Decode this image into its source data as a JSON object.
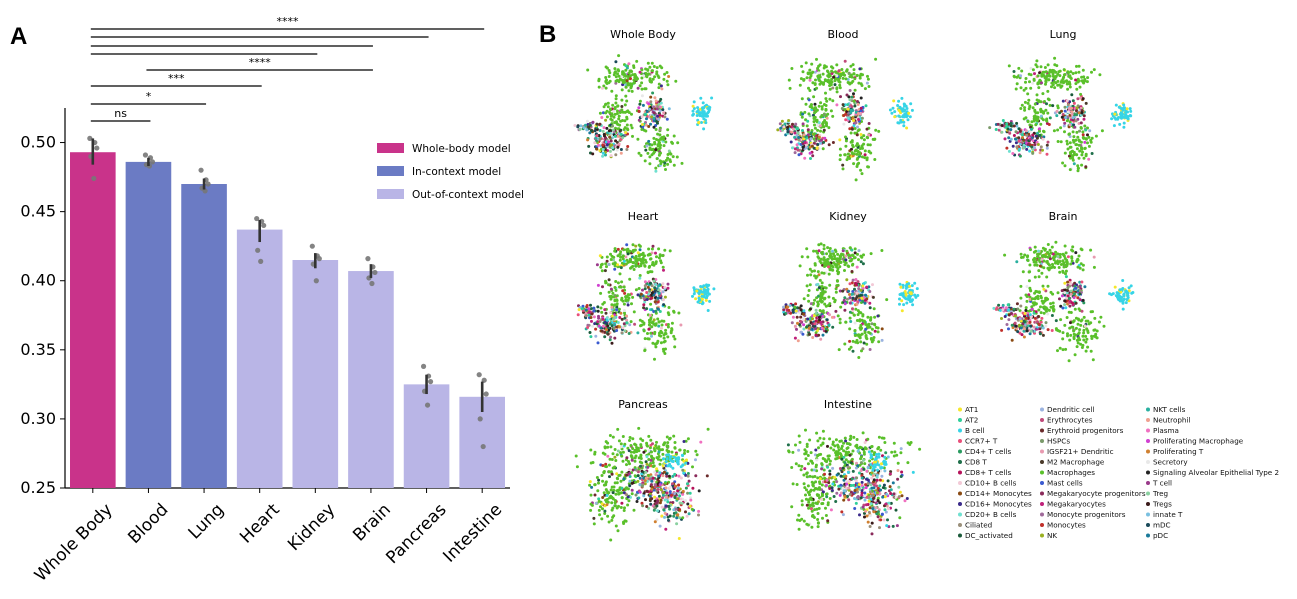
{
  "panel_a": {
    "letter": "A",
    "legend": [
      "Whole-body model",
      "In-context model",
      "Out-of-context model"
    ],
    "colors": {
      "whole_body": "#c9338a",
      "in_context": "#6b7bc4",
      "out_of_context": "#b9b5e6",
      "error_bar": "#333333",
      "dot": "#777777"
    }
  },
  "panel_b": {
    "letter": "B",
    "umap_titles": [
      "Whole Body",
      "Blood",
      "Lung",
      "Heart",
      "Kidney",
      "Brain",
      "Pancreas",
      "Intestine"
    ],
    "cell_types": [
      {
        "name": "AT1",
        "color": "#f5e72b"
      },
      {
        "name": "AT2",
        "color": "#2ecf9a"
      },
      {
        "name": "B cell",
        "color": "#36d4e6"
      },
      {
        "name": "CCR7+ T",
        "color": "#e8507a"
      },
      {
        "name": "CD4+ T cells",
        "color": "#2a9b60"
      },
      {
        "name": "CD8 T",
        "color": "#1f6f4a"
      },
      {
        "name": "CD8+ T cells",
        "color": "#b5125a"
      },
      {
        "name": "CD10+ B cells",
        "color": "#f2c9d6"
      },
      {
        "name": "CD14+ Monocytes",
        "color": "#8a4a12"
      },
      {
        "name": "CD16+ Monocytes",
        "color": "#3a2a8a"
      },
      {
        "name": "CD20+ B cells",
        "color": "#6fe0d0"
      },
      {
        "name": "Ciliated",
        "color": "#9a8f7a"
      },
      {
        "name": "DC_activated",
        "color": "#1a5a3a"
      },
      {
        "name": "Dendritic cell",
        "color": "#9bb3e0"
      },
      {
        "name": "Erythrocytes",
        "color": "#c04a7a"
      },
      {
        "name": "Erythroid progenitors",
        "color": "#6a2a2a"
      },
      {
        "name": "HSPCs",
        "color": "#7a9a6a"
      },
      {
        "name": "IGSF21+ Dendritic",
        "color": "#e89ab0"
      },
      {
        "name": "M2 Macrophage",
        "color": "#4a3a2a"
      },
      {
        "name": "Macrophages",
        "color": "#5ac02a"
      },
      {
        "name": "Mast cells",
        "color": "#3a5ad0"
      },
      {
        "name": "Megakaryocyte progenitors",
        "color": "#8a2a5a"
      },
      {
        "name": "Megakaryocytes",
        "color": "#c0207a"
      },
      {
        "name": "Monocyte progenitors",
        "color": "#a06a9a"
      },
      {
        "name": "Monocytes",
        "color": "#c0302a"
      },
      {
        "name": "NK",
        "color": "#9ab020"
      },
      {
        "name": "NKT cells",
        "color": "#2ab0a0"
      },
      {
        "name": "Neutrophil",
        "color": "#f0a090"
      },
      {
        "name": "Plasma",
        "color": "#f070c0"
      },
      {
        "name": "Proliferating Macrophage",
        "color": "#d040d0"
      },
      {
        "name": "Proliferating T",
        "color": "#d08030"
      },
      {
        "name": "Secretory",
        "color": "#e8e8e8"
      },
      {
        "name": "Signaling Alveolar Epithelial Type 2",
        "color": "#222222"
      },
      {
        "name": "T cell",
        "color": "#9a3a8a"
      },
      {
        "name": "Treg",
        "color": "#8ad0a0"
      },
      {
        "name": "Tregs",
        "color": "#3a1a1a"
      },
      {
        "name": "innate T",
        "color": "#7ac0e0"
      },
      {
        "name": "mDC",
        "color": "#1a4a5a"
      },
      {
        "name": "pDC",
        "color": "#1a7a9a"
      }
    ]
  },
  "chart_data": [
    {
      "type": "bar",
      "categories": [
        "Whole Body",
        "Blood",
        "Lung",
        "Heart",
        "Kidney",
        "Brain",
        "Pancreas",
        "Intestine"
      ],
      "values": [
        0.493,
        0.486,
        0.47,
        0.437,
        0.415,
        0.407,
        0.325,
        0.316
      ],
      "error_low": [
        0.484,
        0.483,
        0.466,
        0.428,
        0.409,
        0.402,
        0.318,
        0.305
      ],
      "error_high": [
        0.503,
        0.489,
        0.474,
        0.444,
        0.42,
        0.412,
        0.332,
        0.327
      ],
      "groups": [
        "whole_body",
        "in_context",
        "in_context",
        "out_of_context",
        "out_of_context",
        "out_of_context",
        "out_of_context",
        "out_of_context"
      ],
      "points": [
        [
          0.503,
          0.5,
          0.496,
          0.49,
          0.474
        ],
        [
          0.491,
          0.489,
          0.486,
          0.484,
          0.483
        ],
        [
          0.48,
          0.473,
          0.47,
          0.467,
          0.465
        ],
        [
          0.445,
          0.443,
          0.44,
          0.422,
          0.414
        ],
        [
          0.425,
          0.418,
          0.416,
          0.412,
          0.4
        ],
        [
          0.416,
          0.41,
          0.406,
          0.402,
          0.398
        ],
        [
          0.338,
          0.331,
          0.327,
          0.32,
          0.31
        ],
        [
          0.332,
          0.328,
          0.318,
          0.3,
          0.28
        ]
      ],
      "ylim": [
        0.25,
        0.525
      ],
      "yticks": [
        "0.25",
        "0.30",
        "0.35",
        "0.40",
        "0.45",
        "0.50"
      ],
      "significance": [
        {
          "from": 0,
          "to": 7,
          "label": "****"
        },
        {
          "from": 0,
          "to": 6,
          "label": ""
        },
        {
          "from": 0,
          "to": 5,
          "label": ""
        },
        {
          "from": 0,
          "to": 4,
          "label": ""
        },
        {
          "from": 1,
          "to": 5,
          "label": "****"
        },
        {
          "from": 0,
          "to": 3,
          "label": "***"
        },
        {
          "from": 0,
          "to": 2,
          "label": "*"
        },
        {
          "from": 0,
          "to": 1,
          "label": "ns"
        }
      ]
    }
  ]
}
